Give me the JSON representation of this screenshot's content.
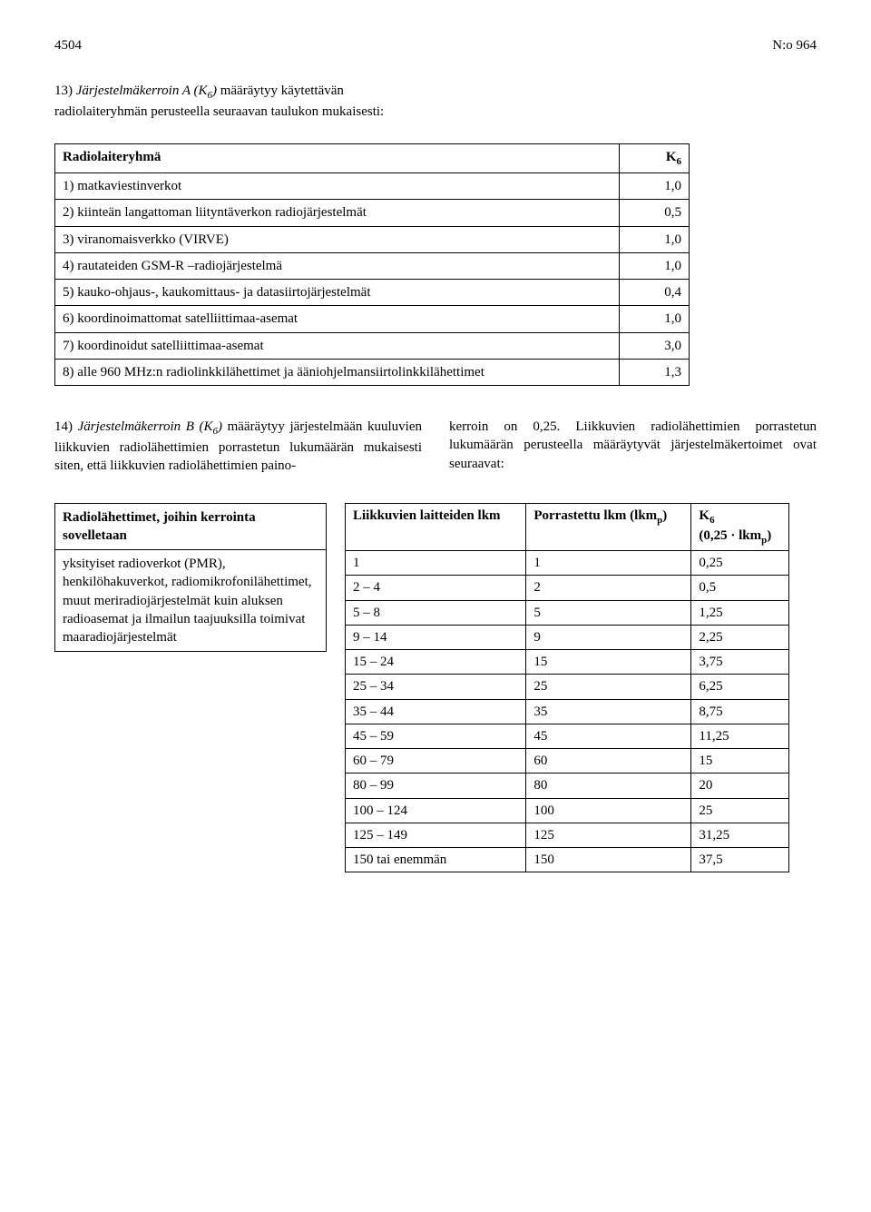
{
  "header": {
    "page_number": "4504",
    "doc_number": "N:o 964"
  },
  "section13": {
    "intro_prefix": "13) ",
    "intro_italic": "Järjestelmäkerroin A (K",
    "intro_sub": "6",
    "intro_italic_end": ")",
    "intro_rest": " määräytyy käytettävän radiolaiteryhmän perusteella seuraavan taulukon mukaisesti:"
  },
  "table1": {
    "header_left": "Radiolaiteryhmä",
    "header_right_k": "K",
    "header_right_sub": "6",
    "rows": [
      {
        "label": "1) matkaviestinverkot",
        "value": "1,0"
      },
      {
        "label": "2) kiinteän langattoman liityntäverkon radiojärjestelmät",
        "value": "0,5"
      },
      {
        "label": "3) viranomaisverkko (VIRVE)",
        "value": "1,0"
      },
      {
        "label": "4) rautateiden GSM-R –radiojärjestelmä",
        "value": "1,0"
      },
      {
        "label": "5) kauko-ohjaus-, kaukomittaus- ja datasiirtojärjestelmät",
        "value": "0,4"
      },
      {
        "label": "6) koordinoimattomat satelliittimaa-asemat",
        "value": "1,0"
      },
      {
        "label": "7) koordinoidut satelliittimaa-asemat",
        "value": "3,0"
      },
      {
        "label": "8) alle 960 MHz:n radiolinkkilähettimet ja ääniohjelmansiirtolinkkilähettimet",
        "value": "1,3"
      }
    ]
  },
  "section14": {
    "left_prefix": "14) ",
    "left_italic": "Järjestelmäkerroin B (K",
    "left_sub": "6",
    "left_italic_end": ")",
    "left_rest": " määräytyy järjestelmään kuuluvien liikkuvien radiolähettimien porrastetun lukumäärän mukaisesti siten, että liikkuvien radiolähettimien paino-",
    "right": "kerroin on 0,25. Liikkuvien radiolähettimien porrastetun lukumäärän perusteella määräytyvät järjestelmäkertoimet ovat seuraavat:"
  },
  "table2_left": {
    "header": "Radiolähettimet, joihin kerrointa sovelletaan",
    "body": "yksityiset radioverkot (PMR), henkilöhakuverkot, radiomikrofonilähettimet, muut meriradiojärjestelmät kuin aluksen radioasemat ja ilmailun taajuuksilla toimivat maaradiojärjestelmät"
  },
  "table2_right": {
    "head_col1": "Liikkuvien laitteiden lkm",
    "head_col2_a": "Porrastettu lkm (lkm",
    "head_col2_sub": "p",
    "head_col2_b": ")",
    "head_col3_a": "K",
    "head_col3_sub": "6",
    "head_col3_b": " (0,25 · lkm",
    "head_col3_sub2": "p",
    "head_col3_c": ")",
    "rows": [
      {
        "c1": "1",
        "c2": "1",
        "c3": "0,25"
      },
      {
        "c1": "2 – 4",
        "c2": "2",
        "c3": "0,5"
      },
      {
        "c1": "5 – 8",
        "c2": "5",
        "c3": "1,25"
      },
      {
        "c1": "9 – 14",
        "c2": "9",
        "c3": "2,25"
      },
      {
        "c1": "15 – 24",
        "c2": "15",
        "c3": "3,75"
      },
      {
        "c1": "25 – 34",
        "c2": "25",
        "c3": "6,25"
      },
      {
        "c1": "35 – 44",
        "c2": "35",
        "c3": "8,75"
      },
      {
        "c1": "45 – 59",
        "c2": "45",
        "c3": "11,25"
      },
      {
        "c1": "60 – 79",
        "c2": "60",
        "c3": "15"
      },
      {
        "c1": "80 – 99",
        "c2": "80",
        "c3": "20"
      },
      {
        "c1": "100 – 124",
        "c2": "100",
        "c3": "25"
      },
      {
        "c1": "125 – 149",
        "c2": "125",
        "c3": "31,25"
      },
      {
        "c1": "150 tai enemmän",
        "c2": "150",
        "c3": "37,5"
      }
    ]
  }
}
